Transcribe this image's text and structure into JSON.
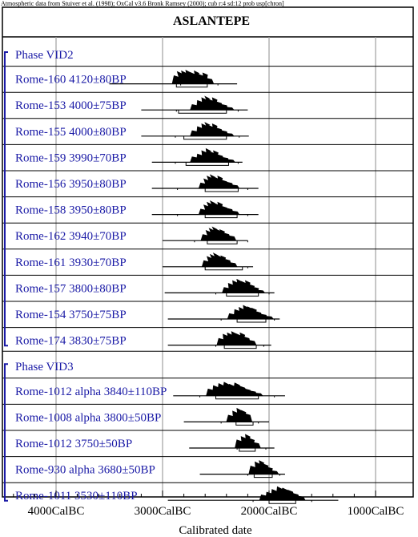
{
  "header_note": "Atmospheric data from Stuiver et al. (1998); OxCal v3.6 Bronk Ramsey (2000); cub r:4 sd:12 prob usp[chron]",
  "colors": {
    "label": "#1a1aa6",
    "grid": "#a0a0a0",
    "ink": "#000000"
  },
  "chart_data": {
    "type": "calibration-plot",
    "title": "ASLANTEPE",
    "xlabel": "Calibrated date",
    "x_direction": "BC descending left-to-right",
    "xlim_calBC": [
      4500,
      1000
    ],
    "grid": true,
    "ticks": [
      {
        "value": 4000,
        "label": "4000CalBC"
      },
      {
        "value": 3000,
        "label": "3000CalBC"
      },
      {
        "value": 2000,
        "label": "2000CalBC"
      },
      {
        "value": 1000,
        "label": "1000CalBC"
      }
    ],
    "phases": [
      {
        "name": "Phase VID2",
        "samples": [
          {
            "label": "Rome-160  4120±80BP",
            "range_95": [
              2830,
              2480
            ],
            "range_68": [
              2870,
              2580
            ],
            "line": [
              3500,
              2300
            ],
            "peaks": [
              [
                2870,
                0.6
              ],
              [
                2840,
                0.9
              ],
              [
                2800,
                0.95
              ],
              [
                2760,
                1
              ],
              [
                2720,
                0.85
              ],
              [
                2680,
                0.95
              ],
              [
                2640,
                0.7
              ],
              [
                2600,
                0.8
              ],
              [
                2560,
                0.4
              ]
            ]
          },
          {
            "label": "Rome-153  4000±75BP",
            "range_95": [
              2870,
              2290
            ],
            "range_68": [
              2850,
              2400
            ],
            "line": [
              3200,
              2200
            ],
            "peaks": [
              [
                2700,
                0.4
              ],
              [
                2650,
                0.7
              ],
              [
                2610,
                0.9
              ],
              [
                2580,
                1
              ],
              [
                2550,
                0.8
              ],
              [
                2510,
                0.9
              ],
              [
                2470,
                0.6
              ],
              [
                2420,
                0.4
              ],
              [
                2370,
                0.2
              ]
            ]
          },
          {
            "label": "Rome-155  4000±80BP",
            "range_95": [
              2880,
              2280
            ],
            "range_68": [
              2800,
              2400
            ],
            "line": [
              3200,
              2190
            ],
            "peaks": [
              [
                2700,
                0.4
              ],
              [
                2650,
                0.7
              ],
              [
                2610,
                0.9
              ],
              [
                2580,
                1
              ],
              [
                2550,
                0.8
              ],
              [
                2510,
                0.9
              ],
              [
                2470,
                0.6
              ],
              [
                2420,
                0.4
              ],
              [
                2370,
                0.2
              ]
            ]
          },
          {
            "label": "Rome-159  3990±70BP",
            "range_95": [
              2880,
              2290
            ],
            "range_68": [
              2780,
              2380
            ],
            "line": [
              3100,
              2250
            ],
            "peaks": [
              [
                2700,
                0.4
              ],
              [
                2650,
                0.6
              ],
              [
                2610,
                0.85
              ],
              [
                2570,
                1
              ],
              [
                2540,
                0.8
              ],
              [
                2500,
                0.85
              ],
              [
                2460,
                0.55
              ],
              [
                2410,
                0.35
              ],
              [
                2360,
                0.2
              ]
            ]
          },
          {
            "label": "Rome-156  3950±80BP",
            "range_95": [
              2860,
              2200
            ],
            "range_68": [
              2600,
              2290
            ],
            "line": [
              3100,
              2100
            ],
            "peaks": [
              [
                2620,
                0.4
              ],
              [
                2590,
                0.7
              ],
              [
                2560,
                0.9
              ],
              [
                2530,
                1
              ],
              [
                2500,
                0.85
              ],
              [
                2460,
                0.9
              ],
              [
                2420,
                0.6
              ],
              [
                2370,
                0.45
              ],
              [
                2320,
                0.25
              ]
            ]
          },
          {
            "label": "Rome-158  3950±80BP",
            "range_95": [
              2860,
              2200
            ],
            "range_68": [
              2600,
              2300
            ],
            "line": [
              3100,
              2100
            ],
            "peaks": [
              [
                2620,
                0.4
              ],
              [
                2590,
                0.7
              ],
              [
                2560,
                0.9
              ],
              [
                2530,
                1
              ],
              [
                2500,
                0.85
              ],
              [
                2460,
                0.9
              ],
              [
                2420,
                0.6
              ],
              [
                2370,
                0.45
              ],
              [
                2320,
                0.25
              ]
            ]
          },
          {
            "label": "Rome-162  3940±70BP",
            "range_95": [
              2700,
              2200
            ],
            "range_68": [
              2580,
              2300
            ],
            "line": [
              3000,
              2200
            ],
            "peaks": [
              [
                2600,
                0.45
              ],
              [
                2570,
                0.75
              ],
              [
                2540,
                0.9
              ],
              [
                2510,
                1
              ],
              [
                2480,
                0.85
              ],
              [
                2440,
                0.8
              ],
              [
                2400,
                0.55
              ],
              [
                2350,
                0.35
              ]
            ]
          },
          {
            "label": "Rome-161  3930±70BP",
            "range_95": [
              2600,
              2200
            ],
            "range_68": [
              2600,
              2250
            ],
            "line": [
              3000,
              2150
            ],
            "peaks": [
              [
                2590,
                0.45
              ],
              [
                2560,
                0.75
              ],
              [
                2530,
                0.9
              ],
              [
                2500,
                1
              ],
              [
                2470,
                0.85
              ],
              [
                2430,
                0.8
              ],
              [
                2390,
                0.55
              ],
              [
                2340,
                0.3
              ]
            ]
          },
          {
            "label": "Rome-157  3800±80BP",
            "range_95": [
              2500,
              2000
            ],
            "range_68": [
              2400,
              2100
            ],
            "line": [
              2980,
              1950
            ],
            "peaks": [
              [
                2400,
                0.4
              ],
              [
                2360,
                0.7
              ],
              [
                2320,
                0.9
              ],
              [
                2280,
                1
              ],
              [
                2240,
                0.85
              ],
              [
                2200,
                0.9
              ],
              [
                2160,
                0.6
              ],
              [
                2120,
                0.4
              ],
              [
                2080,
                0.2
              ]
            ]
          },
          {
            "label": "Rome-154  3750±75BP",
            "range_95": [
              2450,
              1950
            ],
            "range_68": [
              2300,
              2030
            ],
            "line": [
              2950,
              1900
            ],
            "peaks": [
              [
                2350,
                0.4
              ],
              [
                2300,
                0.7
              ],
              [
                2260,
                0.85
              ],
              [
                2220,
                1
              ],
              [
                2180,
                0.9
              ],
              [
                2140,
                0.8
              ],
              [
                2100,
                0.55
              ],
              [
                2050,
                0.35
              ],
              [
                2000,
                0.2
              ]
            ]
          },
          {
            "label": "Rome-174  3830±75BP",
            "range_95": [
              2500,
              2050
            ],
            "range_68": [
              2420,
              2120
            ],
            "line": [
              2950,
              1980
            ],
            "peaks": [
              [
                2450,
                0.5
              ],
              [
                2410,
                0.8
              ],
              [
                2370,
                0.9
              ],
              [
                2330,
                1
              ],
              [
                2290,
                0.85
              ],
              [
                2250,
                0.9
              ],
              [
                2210,
                0.6
              ],
              [
                2160,
                0.35
              ]
            ]
          }
        ]
      },
      {
        "name": "Phase VID3",
        "samples": [
          {
            "label": "Rome-1012 alpha  3840±110BP",
            "range_95": [
              2650,
              1950
            ],
            "range_68": [
              2500,
              2100
            ],
            "line": [
              2900,
              1850
            ],
            "peaks": [
              [
                2550,
                0.5
              ],
              [
                2500,
                0.75
              ],
              [
                2450,
                0.9
              ],
              [
                2400,
                1
              ],
              [
                2350,
                0.85
              ],
              [
                2300,
                0.95
              ],
              [
                2250,
                0.7
              ],
              [
                2200,
                0.5
              ],
              [
                2150,
                0.35
              ],
              [
                2100,
                0.2
              ]
            ]
          },
          {
            "label": "Rome-1008 alpha  3800±50BP",
            "range_95": [
              2450,
              2100
            ],
            "range_68": [
              2310,
              2150
            ],
            "line": [
              2800,
              2000
            ],
            "peaks": [
              [
                2360,
                0.5
              ],
              [
                2320,
                0.8
              ],
              [
                2280,
                1
              ],
              [
                2240,
                0.85
              ],
              [
                2200,
                0.6
              ]
            ]
          },
          {
            "label": "Rome-1012  3750±50BP",
            "range_95": [
              2300,
              2030
            ],
            "range_68": [
              2280,
              2130
            ],
            "line": [
              2750,
              1950
            ],
            "peaks": [
              [
                2280,
                0.6
              ],
              [
                2240,
                0.85
              ],
              [
                2200,
                1
              ],
              [
                2160,
                0.7
              ],
              [
                2120,
                0.4
              ]
            ]
          },
          {
            "label": "Rome-930 alpha  3680±50BP",
            "range_95": [
              2200,
              1900
            ],
            "range_68": [
              2140,
              1970
            ],
            "line": [
              2650,
              1850
            ],
            "peaks": [
              [
                2150,
                0.6
              ],
              [
                2110,
                0.9
              ],
              [
                2070,
                1
              ],
              [
                2030,
                0.75
              ],
              [
                1990,
                0.5
              ],
              [
                1950,
                0.25
              ]
            ]
          },
          {
            "label": "Rome-1011  3530±110BP",
            "range_95": [
              2150,
              1600
            ],
            "range_68": [
              2000,
              1750
            ],
            "line": [
              2950,
              1350
            ],
            "peaks": [
              [
                2050,
                0.4
              ],
              [
                2000,
                0.6
              ],
              [
                1950,
                0.8
              ],
              [
                1900,
                1
              ],
              [
                1850,
                0.9
              ],
              [
                1800,
                0.75
              ],
              [
                1750,
                0.5
              ],
              [
                1700,
                0.3
              ]
            ]
          }
        ]
      }
    ]
  }
}
